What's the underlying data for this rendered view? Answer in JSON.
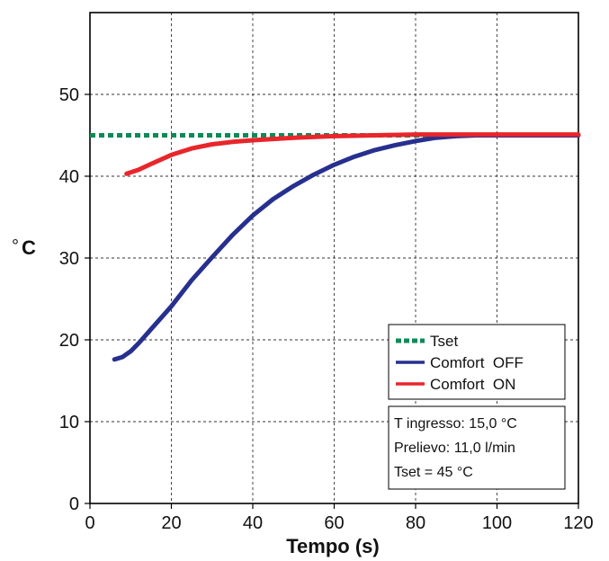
{
  "chart_data": {
    "type": "line",
    "xlabel": "Tempo (s)",
    "ylabel_unit": "°",
    "ylabel_main": "C",
    "xlim": [
      0,
      120
    ],
    "ylim": [
      0,
      60
    ],
    "x_ticks": [
      0,
      20,
      40,
      60,
      80,
      100,
      120
    ],
    "y_ticks": [
      0,
      10,
      20,
      30,
      40,
      50
    ],
    "grid": true,
    "legend_position": "lower-right",
    "series": [
      {
        "name": "Tset",
        "color": "#0e8a5a",
        "style": "dotted",
        "points": [
          [
            0,
            45
          ],
          [
            120,
            45
          ]
        ]
      },
      {
        "name": "Comfort  OFF",
        "color": "#27308f",
        "style": "solid",
        "points": [
          [
            6,
            17.6
          ],
          [
            8,
            17.9
          ],
          [
            10,
            18.6
          ],
          [
            12,
            19.6
          ],
          [
            15,
            21.3
          ],
          [
            20,
            24.1
          ],
          [
            25,
            27.3
          ],
          [
            30,
            30.1
          ],
          [
            35,
            32.8
          ],
          [
            40,
            35.2
          ],
          [
            45,
            37.2
          ],
          [
            50,
            38.8
          ],
          [
            55,
            40.2
          ],
          [
            60,
            41.4
          ],
          [
            65,
            42.4
          ],
          [
            70,
            43.2
          ],
          [
            75,
            43.8
          ],
          [
            80,
            44.3
          ],
          [
            85,
            44.7
          ],
          [
            90,
            44.9
          ],
          [
            95,
            45.0
          ],
          [
            100,
            45.0
          ],
          [
            110,
            45.0
          ],
          [
            120,
            45.0
          ]
        ]
      },
      {
        "name": "Comfort  ON",
        "color": "#e8262b",
        "style": "solid",
        "points": [
          [
            9,
            40.3
          ],
          [
            12,
            40.8
          ],
          [
            15,
            41.5
          ],
          [
            20,
            42.6
          ],
          [
            25,
            43.4
          ],
          [
            30,
            43.9
          ],
          [
            35,
            44.2
          ],
          [
            40,
            44.4
          ],
          [
            50,
            44.7
          ],
          [
            60,
            44.9
          ],
          [
            70,
            45.0
          ],
          [
            80,
            45.1
          ],
          [
            90,
            45.1
          ],
          [
            100,
            45.1
          ],
          [
            110,
            45.1
          ],
          [
            120,
            45.1
          ]
        ]
      }
    ],
    "info_box": {
      "lines": [
        "T ingresso: 15,0 °C",
        "Prelievo: 11,0 l/min",
        "Tset = 45 °C"
      ]
    }
  }
}
